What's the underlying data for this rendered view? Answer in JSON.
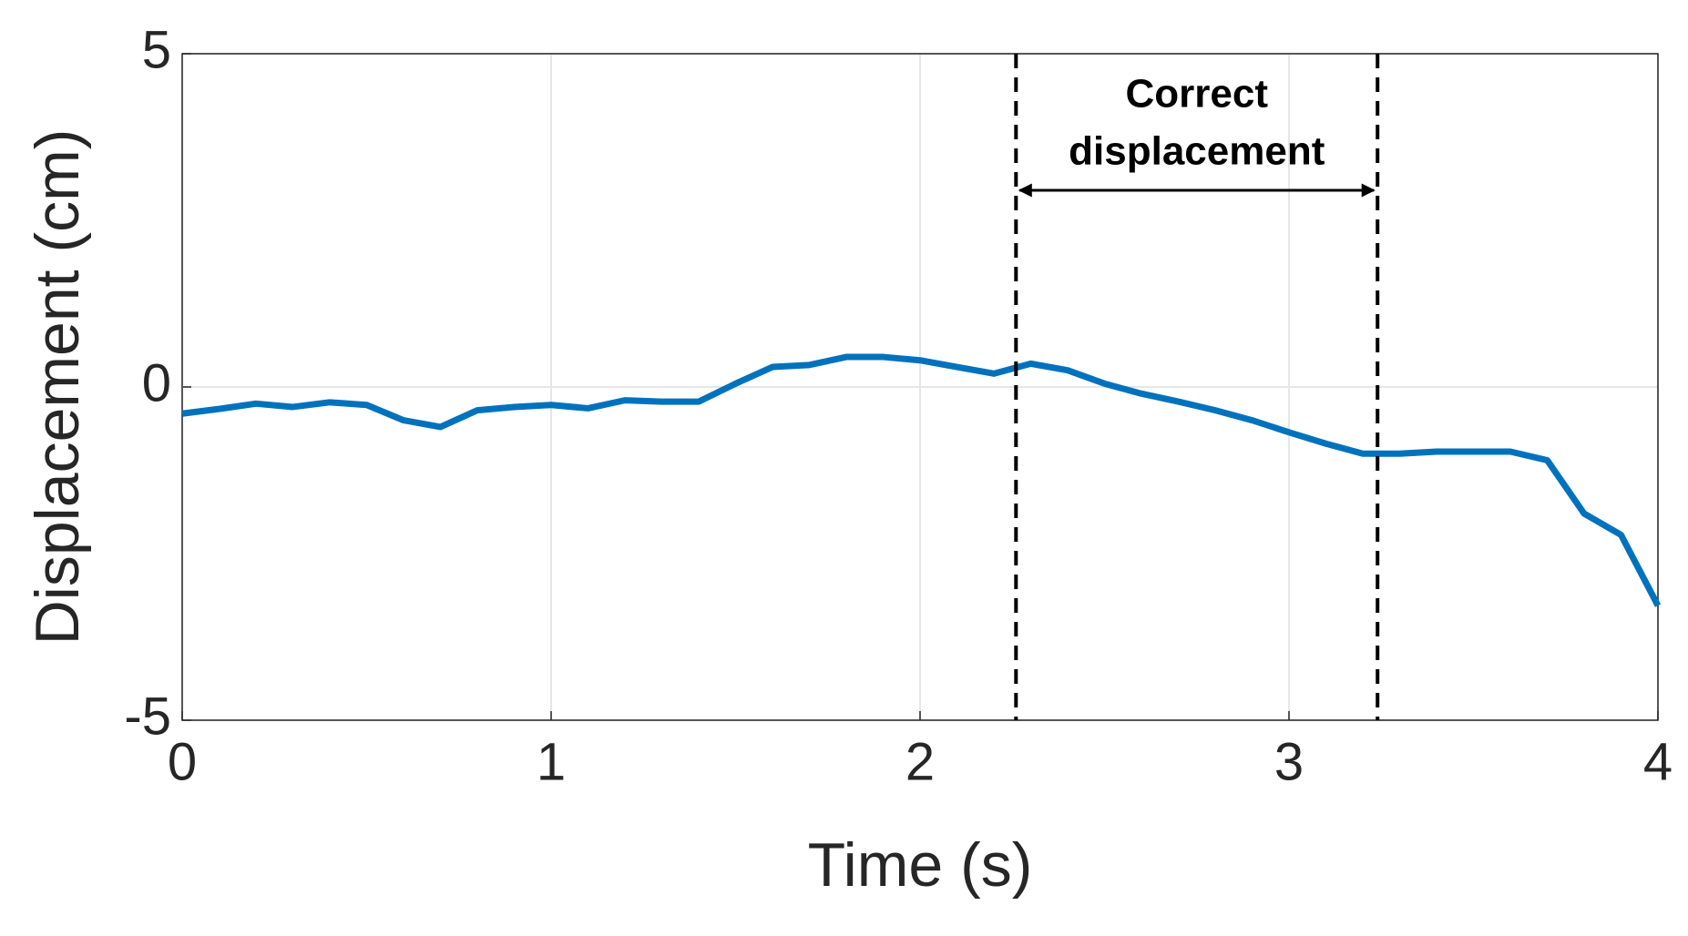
{
  "chart_data": {
    "type": "line",
    "xlabel": "Time (s)",
    "ylabel": "Displacement (cm)",
    "x": [
      0,
      0.1,
      0.2,
      0.3,
      0.4,
      0.5,
      0.6,
      0.7,
      0.8,
      0.9,
      1.0,
      1.1,
      1.2,
      1.3,
      1.4,
      1.5,
      1.6,
      1.7,
      1.8,
      1.9,
      2.0,
      2.1,
      2.2,
      2.3,
      2.4,
      2.5,
      2.6,
      2.7,
      2.8,
      2.9,
      3.0,
      3.1,
      3.2,
      3.3,
      3.4,
      3.5,
      3.6,
      3.7,
      3.8,
      3.9,
      4.0
    ],
    "values": [
      -0.4,
      -0.33,
      -0.25,
      -0.3,
      -0.23,
      -0.27,
      -0.5,
      -0.6,
      -0.35,
      -0.3,
      -0.27,
      -0.32,
      -0.2,
      -0.22,
      -0.22,
      0.05,
      0.3,
      0.33,
      0.45,
      0.45,
      0.4,
      0.3,
      0.2,
      0.35,
      0.25,
      0.05,
      -0.1,
      -0.22,
      -0.35,
      -0.5,
      -0.68,
      -0.85,
      -1.0,
      -1.0,
      -0.97,
      -0.97,
      -0.97,
      -1.1,
      -1.9,
      -2.22,
      -3.28
    ],
    "color": "#0072bd",
    "xlim": [
      0,
      4
    ],
    "xticks": [
      0,
      1,
      2,
      3,
      4
    ],
    "ylim": [
      -5,
      5
    ],
    "yticks": [
      -5,
      0,
      5
    ],
    "grid": true,
    "annotation": {
      "lines": [
        "Correct",
        "displacement"
      ],
      "x": [
        2.26,
        3.24
      ]
    }
  }
}
